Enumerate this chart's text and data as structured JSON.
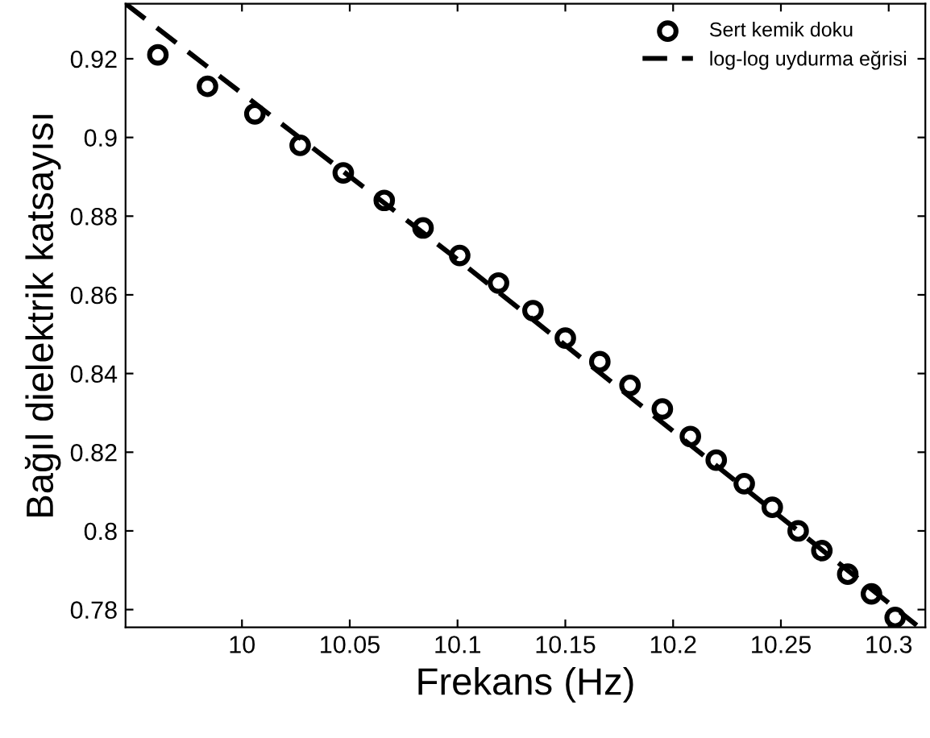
{
  "chart_data": {
    "type": "scatter",
    "xlabel": "Frekans (Hz)",
    "ylabel": "Bağıl dielektrik katsayısı",
    "xlim": [
      9.946,
      10.317
    ],
    "ylim": [
      0.7755,
      0.934
    ],
    "xticks": [
      10,
      10.05,
      10.1,
      10.15,
      10.2,
      10.25,
      10.3
    ],
    "yticks": [
      0.78,
      0.8,
      0.82,
      0.84,
      0.86,
      0.88,
      0.9,
      0.92
    ],
    "grid": false,
    "legend": "top right",
    "series": [
      {
        "name": "Sert kemik doku",
        "color": "#000000",
        "marker": "circle",
        "x": [
          9.961,
          9.984,
          10.006,
          10.027,
          10.047,
          10.066,
          10.084,
          10.101,
          10.119,
          10.135,
          10.15,
          10.166,
          10.18,
          10.195,
          10.208,
          10.22,
          10.233,
          10.246,
          10.258,
          10.269,
          10.281,
          10.292,
          10.303
        ],
        "values": [
          0.921,
          0.913,
          0.906,
          0.898,
          0.891,
          0.884,
          0.877,
          0.87,
          0.863,
          0.856,
          0.849,
          0.843,
          0.837,
          0.831,
          0.824,
          0.818,
          0.812,
          0.806,
          0.8,
          0.795,
          0.789,
          0.784,
          0.778
        ]
      },
      {
        "name": "log-log uydurma eğrisi",
        "type": "line",
        "color": "#000000",
        "line_style": "dashed",
        "marker": "none",
        "x": [
          9.946,
          10.1,
          10.313
        ],
        "values": [
          0.934,
          0.869,
          0.776
        ]
      }
    ]
  }
}
